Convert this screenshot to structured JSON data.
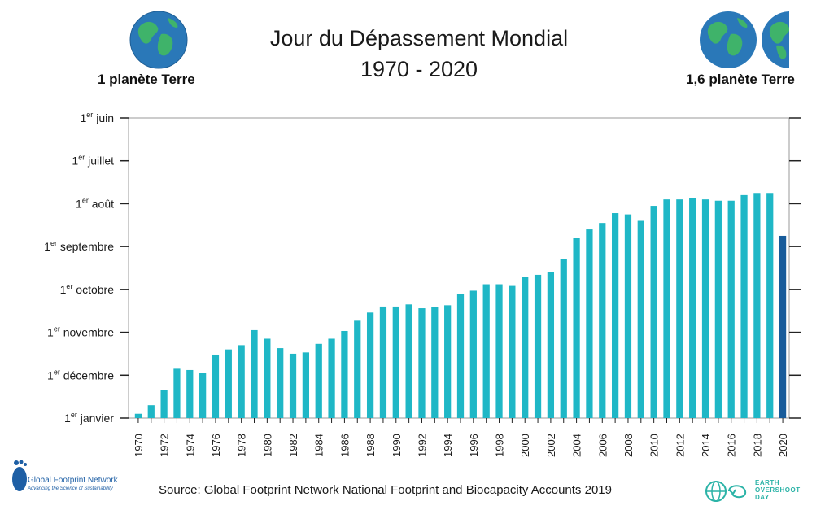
{
  "header": {
    "title_line1": "Jour du Dépassement Mondial",
    "title_line2": "1970 - 2020",
    "left_label": "1 planète Terre",
    "right_label": "1,6 planète Terre"
  },
  "footer": {
    "source": "Source: Global Footprint Network National Footprint and Biocapacity Accounts 2019",
    "gfn_name": "Global Footprint Network",
    "gfn_tagline": "Advancing the Science of Sustainability",
    "eod_line1": "EARTH",
    "eod_line2": "OVERSHOOT",
    "eod_line3": "DAY"
  },
  "colors": {
    "bar": "#1fb7c6",
    "highlight": "#175b9a",
    "globe_ocean": "#2a78b8",
    "globe_land": "#3fb36a"
  },
  "chart_data": {
    "type": "bar",
    "y_axis_note": "days before the end of the year; tick labels are months",
    "ylim": [
      0,
      7
    ],
    "y_ticks": [
      {
        "value": 0,
        "label_sup": "er",
        "label_pre": "1",
        "label_post": " janvier"
      },
      {
        "value": 1,
        "label_sup": "er",
        "label_pre": "1",
        "label_post": " décembre"
      },
      {
        "value": 2,
        "label_sup": "er",
        "label_pre": "1",
        "label_post": " novembre"
      },
      {
        "value": 3,
        "label_sup": "er",
        "label_pre": "1",
        "label_post": " octobre"
      },
      {
        "value": 4,
        "label_sup": "er",
        "label_pre": "1",
        "label_post": " septembre"
      },
      {
        "value": 5,
        "label_sup": "er",
        "label_pre": "1",
        "label_post": " août"
      },
      {
        "value": 6,
        "label_sup": "er",
        "label_pre": "1",
        "label_post": " juillet"
      },
      {
        "value": 7,
        "label_sup": "er",
        "label_pre": "1",
        "label_post": " juin"
      }
    ],
    "x_tick_labels": [
      "1970",
      "1972",
      "1974",
      "1976",
      "1978",
      "1980",
      "1982",
      "1984",
      "1986",
      "1988",
      "1990",
      "1992",
      "1994",
      "1996",
      "1998",
      "2000",
      "2002",
      "2004",
      "2006",
      "2008",
      "2010",
      "2012",
      "2014",
      "2016",
      "2018",
      "2020"
    ],
    "categories": [
      "1970",
      "1971",
      "1972",
      "1973",
      "1974",
      "1975",
      "1976",
      "1977",
      "1978",
      "1979",
      "1980",
      "1981",
      "1982",
      "1983",
      "1984",
      "1985",
      "1986",
      "1987",
      "1988",
      "1989",
      "1990",
      "1991",
      "1992",
      "1993",
      "1994",
      "1995",
      "1996",
      "1997",
      "1998",
      "1999",
      "2000",
      "2001",
      "2002",
      "2003",
      "2004",
      "2005",
      "2006",
      "2007",
      "2008",
      "2009",
      "2010",
      "2011",
      "2012",
      "2013",
      "2014",
      "2015",
      "2016",
      "2017",
      "2018",
      "2019",
      "2020"
    ],
    "values": [
      0.1,
      0.3,
      0.65,
      1.15,
      1.12,
      1.05,
      1.48,
      1.6,
      1.7,
      2.05,
      1.85,
      1.63,
      1.5,
      1.53,
      1.73,
      1.85,
      2.03,
      2.27,
      2.46,
      2.6,
      2.6,
      2.65,
      2.56,
      2.58,
      2.63,
      2.89,
      2.97,
      3.12,
      3.12,
      3.1,
      3.3,
      3.34,
      3.41,
      3.7,
      4.2,
      4.4,
      4.55,
      4.78,
      4.75,
      4.6,
      4.95,
      5.1,
      5.1,
      5.14,
      5.1,
      5.07,
      5.07,
      5.2,
      5.25,
      5.25,
      4.25
    ],
    "highlight_category": "2020",
    "grid": false
  }
}
